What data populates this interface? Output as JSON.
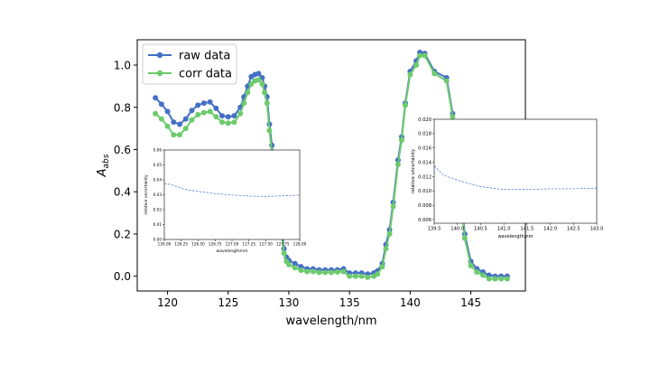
{
  "chart_data": [
    {
      "type": "line",
      "xlabel": "wavelength/nm",
      "ylabel_base": "A",
      "ylabel_sub": "abs",
      "xlim": [
        117.5,
        149.5
      ],
      "ylim": [
        -0.07,
        1.12
      ],
      "xticks": [
        120,
        125,
        130,
        135,
        140,
        145
      ],
      "yticks": [
        0.0,
        0.2,
        0.4,
        0.6,
        0.8,
        1.0
      ],
      "xtick_labels": [
        "120",
        "125",
        "130",
        "135",
        "140",
        "145"
      ],
      "ytick_labels": [
        "0.0",
        "0.2",
        "0.4",
        "0.6",
        "0.8",
        "1.0"
      ],
      "legend_position": "top-left",
      "series": [
        {
          "name": "raw data",
          "color": "#4470c4",
          "points": [
            [
              119,
              0.845
            ],
            [
              119.5,
              0.815
            ],
            [
              120,
              0.78
            ],
            [
              120.5,
              0.73
            ],
            [
              121,
              0.72
            ],
            [
              121.5,
              0.745
            ],
            [
              122,
              0.785
            ],
            [
              122.5,
              0.81
            ],
            [
              123,
              0.82
            ],
            [
              123.5,
              0.825
            ],
            [
              124,
              0.795
            ],
            [
              124.5,
              0.76
            ],
            [
              125,
              0.755
            ],
            [
              125.5,
              0.76
            ],
            [
              126,
              0.8
            ],
            [
              126.3,
              0.85
            ],
            [
              126.6,
              0.9
            ],
            [
              126.9,
              0.945
            ],
            [
              127.2,
              0.955
            ],
            [
              127.5,
              0.96
            ],
            [
              127.8,
              0.94
            ],
            [
              128,
              0.9
            ],
            [
              128.2,
              0.85
            ],
            [
              128.4,
              0.72
            ],
            [
              128.6,
              0.62
            ],
            [
              128.8,
              0.52
            ],
            [
              129,
              0.42
            ],
            [
              129.2,
              0.32
            ],
            [
              129.4,
              0.22
            ],
            [
              129.6,
              0.13
            ],
            [
              129.8,
              0.09
            ],
            [
              130,
              0.075
            ],
            [
              130.5,
              0.06
            ],
            [
              131,
              0.045
            ],
            [
              131.5,
              0.035
            ],
            [
              132,
              0.035
            ],
            [
              132.5,
              0.03
            ],
            [
              133,
              0.03
            ],
            [
              133.5,
              0.03
            ],
            [
              134,
              0.03
            ],
            [
              134.5,
              0.035
            ],
            [
              135,
              0.015
            ],
            [
              135.5,
              0.015
            ],
            [
              136,
              0.015
            ],
            [
              136.5,
              0.01
            ],
            [
              137,
              0.015
            ],
            [
              137.3,
              0.025
            ],
            [
              137.7,
              0.06
            ],
            [
              138,
              0.15
            ],
            [
              138.3,
              0.22
            ],
            [
              138.6,
              0.35
            ],
            [
              139,
              0.55
            ],
            [
              139.3,
              0.66
            ],
            [
              139.6,
              0.82
            ],
            [
              140,
              0.97
            ],
            [
              140.5,
              1.02
            ],
            [
              140.8,
              1.06
            ],
            [
              141.2,
              1.055
            ],
            [
              142,
              0.97
            ],
            [
              143,
              0.94
            ],
            [
              143.5,
              0.77
            ],
            [
              144,
              0.5
            ],
            [
              144.5,
              0.2
            ],
            [
              145,
              0.07
            ],
            [
              145.5,
              0.035
            ],
            [
              146,
              0.02
            ],
            [
              146.5,
              0.005
            ],
            [
              147,
              0.0
            ],
            [
              147.5,
              0.0
            ],
            [
              148,
              0.0
            ]
          ]
        },
        {
          "name": "corr data",
          "color": "#6ccb6c",
          "points": [
            [
              119,
              0.77
            ],
            [
              119.5,
              0.745
            ],
            [
              120,
              0.71
            ],
            [
              120.5,
              0.67
            ],
            [
              121,
              0.67
            ],
            [
              121.5,
              0.7
            ],
            [
              122,
              0.74
            ],
            [
              122.5,
              0.765
            ],
            [
              123,
              0.775
            ],
            [
              123.5,
              0.78
            ],
            [
              124,
              0.755
            ],
            [
              124.5,
              0.73
            ],
            [
              125,
              0.725
            ],
            [
              125.5,
              0.73
            ],
            [
              126,
              0.77
            ],
            [
              126.3,
              0.82
            ],
            [
              126.6,
              0.87
            ],
            [
              126.9,
              0.91
            ],
            [
              127.2,
              0.925
            ],
            [
              127.5,
              0.93
            ],
            [
              127.8,
              0.91
            ],
            [
              128,
              0.87
            ],
            [
              128.2,
              0.82
            ],
            [
              128.4,
              0.69
            ],
            [
              128.6,
              0.59
            ],
            [
              128.8,
              0.49
            ],
            [
              129,
              0.4
            ],
            [
              129.2,
              0.3
            ],
            [
              129.4,
              0.2
            ],
            [
              129.6,
              0.11
            ],
            [
              129.8,
              0.07
            ],
            [
              130,
              0.055
            ],
            [
              130.5,
              0.04
            ],
            [
              131,
              0.028
            ],
            [
              131.5,
              0.022
            ],
            [
              132,
              0.022
            ],
            [
              132.5,
              0.018
            ],
            [
              133,
              0.018
            ],
            [
              133.5,
              0.018
            ],
            [
              134,
              0.02
            ],
            [
              134.5,
              0.022
            ],
            [
              135,
              0.0
            ],
            [
              135.5,
              0.0
            ],
            [
              136,
              0.0
            ],
            [
              136.5,
              -0.005
            ],
            [
              137,
              0.0
            ],
            [
              137.3,
              0.01
            ],
            [
              137.7,
              0.045
            ],
            [
              138,
              0.13
            ],
            [
              138.3,
              0.2
            ],
            [
              138.6,
              0.33
            ],
            [
              139,
              0.53
            ],
            [
              139.3,
              0.645
            ],
            [
              139.6,
              0.81
            ],
            [
              140,
              0.955
            ],
            [
              140.5,
              1.0
            ],
            [
              140.8,
              1.045
            ],
            [
              141.2,
              1.045
            ],
            [
              142,
              0.96
            ],
            [
              143,
              0.925
            ],
            [
              143.5,
              0.755
            ],
            [
              144,
              0.48
            ],
            [
              144.5,
              0.18
            ],
            [
              145,
              0.05
            ],
            [
              145.5,
              0.02
            ],
            [
              146,
              0.005
            ],
            [
              146.5,
              -0.012
            ],
            [
              147,
              -0.012
            ],
            [
              147.5,
              -0.012
            ],
            [
              148,
              -0.012
            ]
          ]
        }
      ]
    },
    {
      "type": "line",
      "xlabel": "wavelength/nm",
      "ylabel": "relative uncertainty",
      "xlim": [
        126.0,
        128.0
      ],
      "ylim": [
        0.0,
        0.06
      ],
      "xtick_labels": [
        "126.00",
        "126.25",
        "126.50",
        "126.75",
        "127.00",
        "127.25",
        "127.50",
        "127.75",
        "128.00"
      ],
      "ytick_labels": [
        "0.00",
        "0.01",
        "0.02",
        "0.03",
        "0.04",
        "0.05",
        "0.06"
      ],
      "series": [
        {
          "color": "#4470c4",
          "style": "dashed",
          "points": [
            [
              126.0,
              0.0375
            ],
            [
              126.1,
              0.0368
            ],
            [
              126.2,
              0.0352
            ],
            [
              126.3,
              0.0336
            ],
            [
              126.5,
              0.0322
            ],
            [
              126.75,
              0.0308
            ],
            [
              127.0,
              0.0298
            ],
            [
              127.25,
              0.0291
            ],
            [
              127.5,
              0.0289
            ],
            [
              127.75,
              0.0293
            ],
            [
              128.0,
              0.0298
            ]
          ]
        }
      ]
    },
    {
      "type": "line",
      "xlabel": "wavelength/nm",
      "ylabel": "relative uncertainty",
      "xlim": [
        139.5,
        143.0
      ],
      "ylim": [
        0.0055,
        0.02
      ],
      "xtick_labels": [
        "139.5",
        "140.0",
        "140.5",
        "141.0",
        "141.5",
        "142.0",
        "142.5",
        "143.0"
      ],
      "ytick_labels": [
        "0.006",
        "0.008",
        "0.010",
        "0.012",
        "0.014",
        "0.016",
        "0.018",
        "0.020"
      ],
      "series": [
        {
          "color": "#4470c4",
          "style": "dashed",
          "points": [
            [
              139.5,
              0.0135
            ],
            [
              139.7,
              0.0122
            ],
            [
              140.0,
              0.0115
            ],
            [
              140.5,
              0.0106
            ],
            [
              141.0,
              0.0102
            ],
            [
              141.5,
              0.0102
            ],
            [
              142.0,
              0.0103
            ],
            [
              142.5,
              0.0103
            ],
            [
              143.0,
              0.0104
            ]
          ]
        }
      ]
    }
  ]
}
